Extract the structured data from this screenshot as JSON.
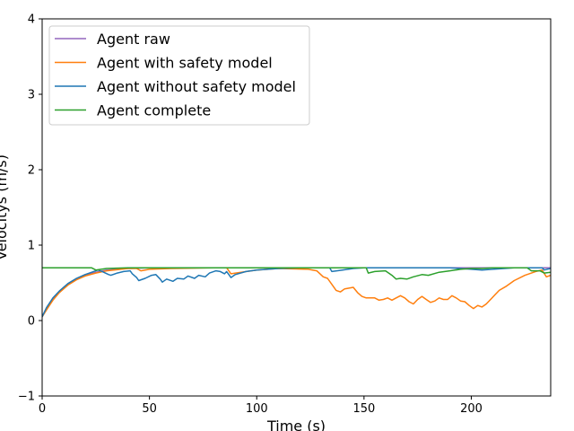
{
  "chart_data": {
    "type": "line",
    "xlabel": "Time (s)",
    "ylabel": "Velocitys (m/s)",
    "xlim": [
      0,
      237
    ],
    "ylim": [
      -1,
      4
    ],
    "xticks": [
      0,
      50,
      100,
      150,
      200
    ],
    "yticks": [
      -1,
      0,
      1,
      2,
      3,
      4
    ],
    "grid": false,
    "legend_position": "top-left",
    "series": [
      {
        "name": "Agent raw",
        "color": "#9467bd",
        "x": [
          0,
          2,
          5,
          8,
          12,
          16,
          20,
          25,
          30,
          40,
          50,
          60,
          80,
          100,
          130,
          160,
          190,
          220,
          237
        ],
        "y": [
          0.05,
          0.16,
          0.29,
          0.38,
          0.48,
          0.55,
          0.6,
          0.64,
          0.67,
          0.69,
          0.7,
          0.7,
          0.7,
          0.7,
          0.7,
          0.7,
          0.7,
          0.7,
          0.7
        ]
      },
      {
        "name": "Agent with safety model",
        "color": "#ff7f0e",
        "x": [
          0,
          2,
          5,
          8,
          12,
          16,
          20,
          25,
          30,
          40,
          44,
          46,
          50,
          60,
          80,
          86,
          88,
          100,
          110,
          124,
          128,
          131,
          133,
          135,
          137,
          139,
          141,
          143,
          145,
          147,
          149,
          151,
          153,
          155,
          157,
          159,
          161,
          163,
          165,
          167,
          169,
          171,
          173,
          175,
          177,
          179,
          181,
          183,
          185,
          187,
          189,
          191,
          193,
          195,
          197,
          199,
          201,
          203,
          205,
          207,
          209,
          211,
          213,
          216,
          220,
          225,
          230,
          233,
          235,
          237
        ],
        "y": [
          0.05,
          0.14,
          0.27,
          0.37,
          0.47,
          0.54,
          0.59,
          0.63,
          0.66,
          0.69,
          0.69,
          0.66,
          0.68,
          0.69,
          0.7,
          0.7,
          0.62,
          0.67,
          0.69,
          0.68,
          0.66,
          0.58,
          0.56,
          0.48,
          0.4,
          0.38,
          0.42,
          0.43,
          0.44,
          0.37,
          0.32,
          0.3,
          0.3,
          0.3,
          0.27,
          0.28,
          0.3,
          0.27,
          0.3,
          0.33,
          0.3,
          0.25,
          0.22,
          0.28,
          0.32,
          0.28,
          0.24,
          0.26,
          0.3,
          0.28,
          0.28,
          0.33,
          0.3,
          0.26,
          0.25,
          0.2,
          0.16,
          0.2,
          0.18,
          0.22,
          0.28,
          0.34,
          0.4,
          0.45,
          0.53,
          0.6,
          0.65,
          0.67,
          0.58,
          0.6
        ]
      },
      {
        "name": "Agent without safety model",
        "color": "#1f77b4",
        "x": [
          0,
          2,
          5,
          8,
          12,
          16,
          20,
          24,
          26,
          28,
          31,
          32,
          35,
          38,
          41,
          42,
          44,
          45,
          48,
          51,
          53,
          55,
          56,
          58,
          61,
          63,
          66,
          68,
          71,
          73,
          76,
          78,
          81,
          83,
          85,
          86,
          88,
          90,
          95,
          100,
          110,
          120,
          128,
          134,
          135,
          140,
          145,
          150,
          152,
          160,
          180,
          190,
          195,
          200,
          205,
          210,
          220,
          233,
          234,
          237
        ],
        "y": [
          0.05,
          0.17,
          0.3,
          0.39,
          0.49,
          0.56,
          0.61,
          0.65,
          0.67,
          0.65,
          0.61,
          0.6,
          0.63,
          0.65,
          0.66,
          0.62,
          0.57,
          0.53,
          0.56,
          0.6,
          0.61,
          0.55,
          0.51,
          0.55,
          0.52,
          0.56,
          0.55,
          0.59,
          0.56,
          0.6,
          0.58,
          0.63,
          0.66,
          0.65,
          0.62,
          0.65,
          0.57,
          0.61,
          0.65,
          0.67,
          0.69,
          0.7,
          0.7,
          0.7,
          0.65,
          0.67,
          0.69,
          0.7,
          0.7,
          0.7,
          0.7,
          0.7,
          0.69,
          0.68,
          0.67,
          0.68,
          0.7,
          0.7,
          0.67,
          0.69
        ]
      },
      {
        "name": "Agent complete",
        "color": "#2ca02c",
        "x": [
          0,
          10,
          20,
          23,
          25,
          30,
          40,
          60,
          100,
          140,
          151,
          152,
          155,
          160,
          163,
          165,
          167,
          170,
          173,
          177,
          180,
          185,
          190,
          195,
          200,
          205,
          210,
          220,
          226,
          228,
          232,
          234,
          237
        ],
        "y": [
          0.7,
          0.7,
          0.7,
          0.7,
          0.67,
          0.69,
          0.7,
          0.7,
          0.7,
          0.7,
          0.7,
          0.63,
          0.65,
          0.66,
          0.6,
          0.55,
          0.56,
          0.55,
          0.58,
          0.61,
          0.6,
          0.64,
          0.66,
          0.68,
          0.69,
          0.69,
          0.7,
          0.7,
          0.7,
          0.66,
          0.66,
          0.63,
          0.64
        ]
      }
    ]
  }
}
